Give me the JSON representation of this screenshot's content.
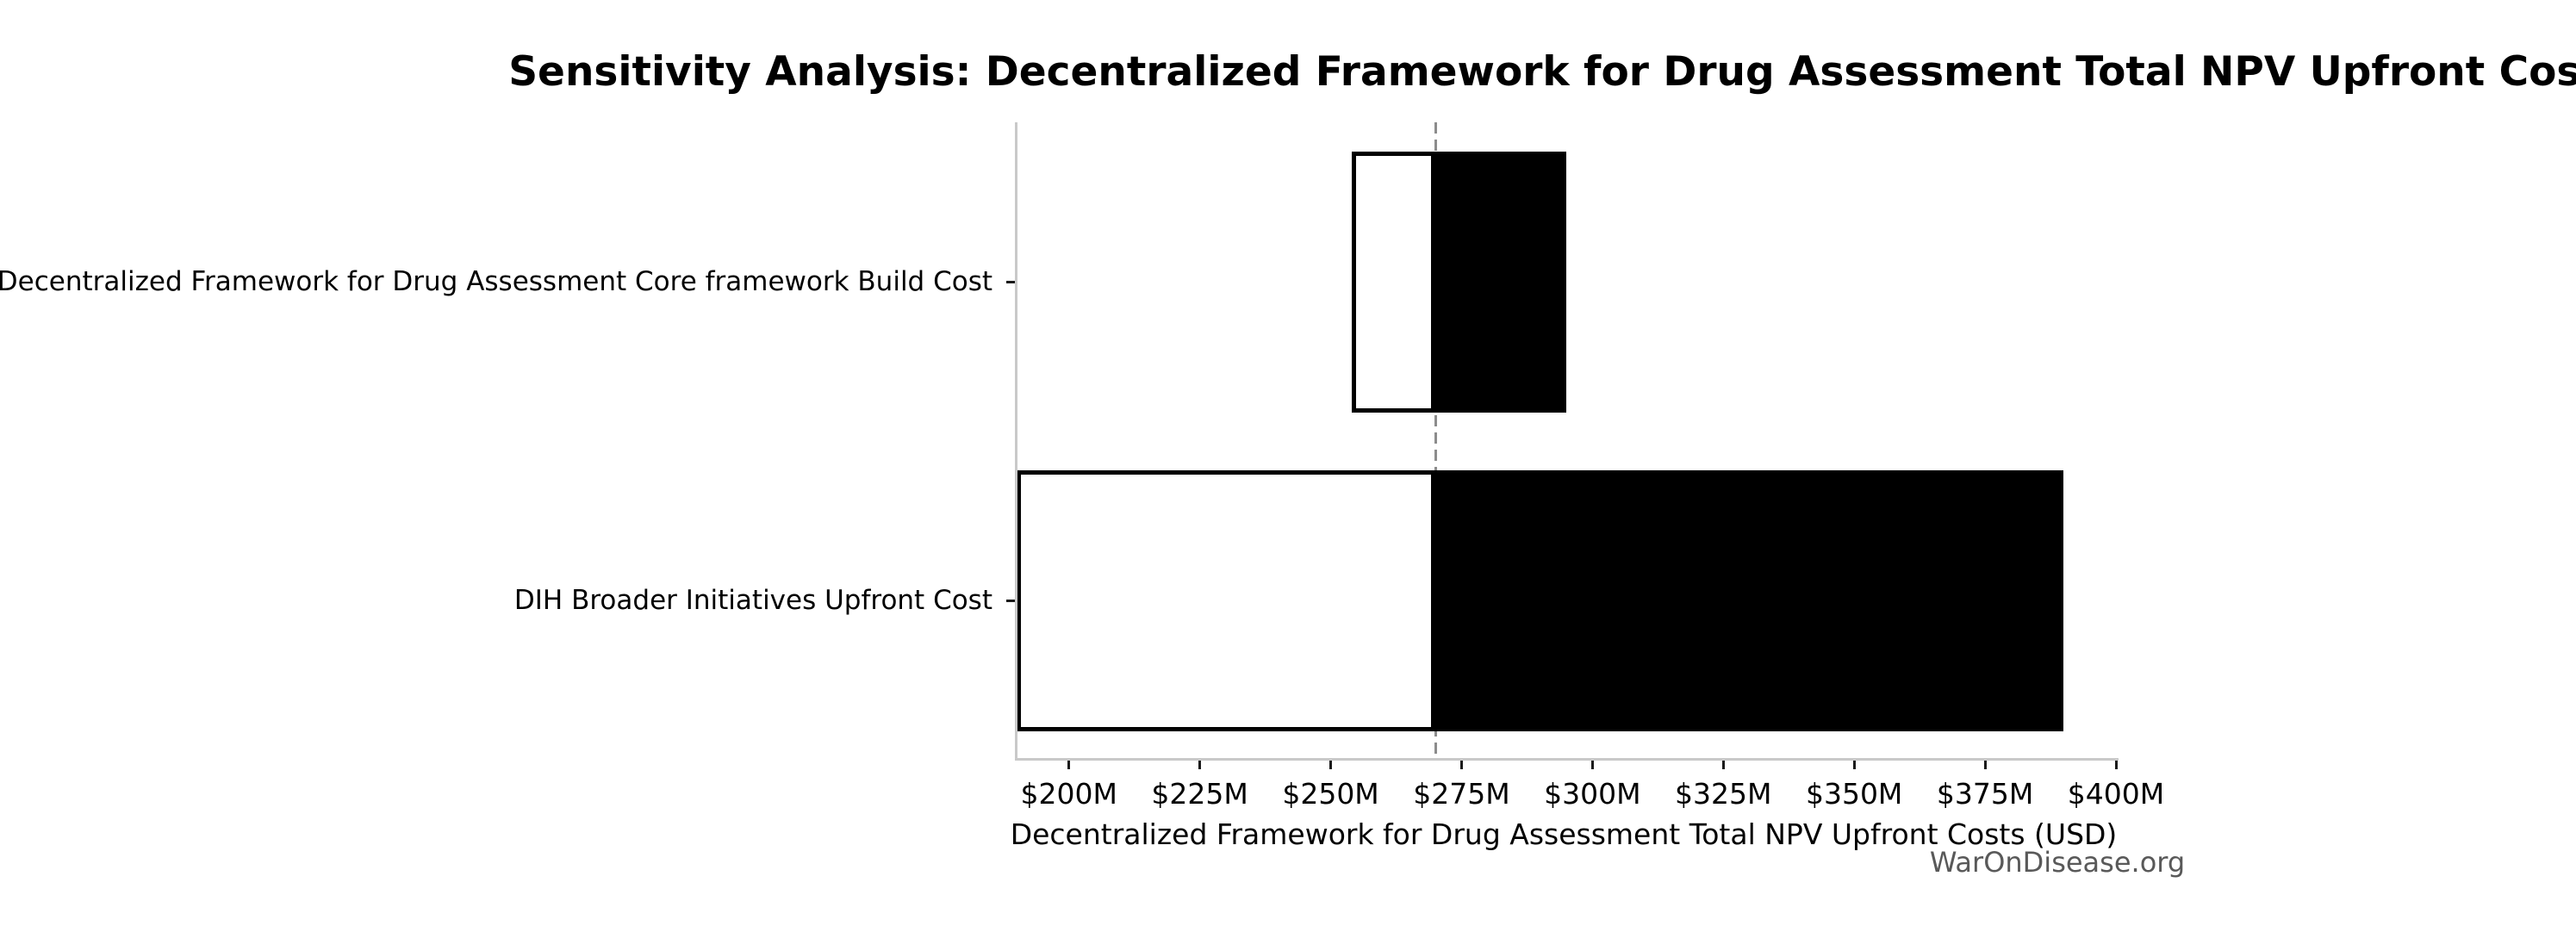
{
  "chart_data": {
    "type": "bar",
    "subtype": "tornado-sensitivity",
    "orientation": "horizontal",
    "title": "Sensitivity Analysis: Decentralized Framework for Drug Assessment Total NPV Upfront Costs",
    "xlabel": "Decentralized Framework for Drug Assessment Total NPV Upfront Costs (USD)",
    "watermark": "WarOnDisease.org",
    "units": "USD millions",
    "xlim": [
      190,
      400
    ],
    "x_ticks": [
      {
        "value": 200,
        "label": "$200M"
      },
      {
        "value": 225,
        "label": "$225M"
      },
      {
        "value": 250,
        "label": "$250M"
      },
      {
        "value": 275,
        "label": "$275M"
      },
      {
        "value": 300,
        "label": "$300M"
      },
      {
        "value": 325,
        "label": "$325M"
      },
      {
        "value": 350,
        "label": "$350M"
      },
      {
        "value": 375,
        "label": "$375M"
      },
      {
        "value": 400,
        "label": "$400M"
      }
    ],
    "base_value": 270,
    "bars": [
      {
        "category": "Decentralized Framework for Drug Assessment Core framework Build Cost",
        "low": 254,
        "high": 295
      },
      {
        "category": "DIH Broader Initiatives Upfront Cost",
        "low": 190,
        "high": 390
      }
    ],
    "legend": "none",
    "grid": false,
    "colors": {
      "low_fill": "#ffffff",
      "high_fill": "#000000",
      "bar_edge": "#000000",
      "baseline_dash": "#8c8c8c",
      "spine": "#c9c9c9",
      "tick_mark": "#1a1a1a",
      "text": "#000000",
      "watermark_text": "#595959",
      "background": "#ffffff"
    }
  }
}
